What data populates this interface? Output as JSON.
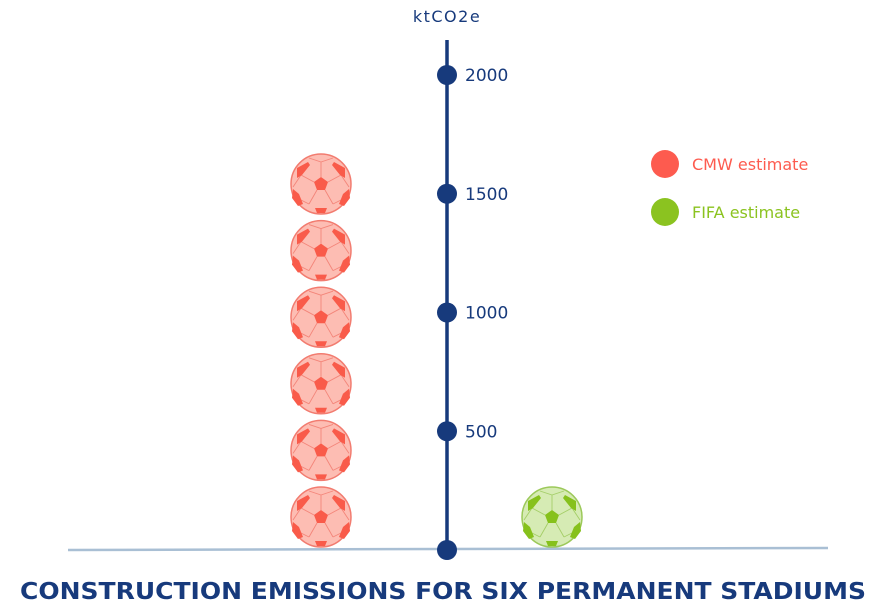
{
  "chart_data": {
    "type": "pictogram",
    "title": "CONSTRUCTION EMISSIONS FOR SIX PERMANENT STADIUMS",
    "ylabel": "ktCO2e",
    "ylim": [
      0,
      2000
    ],
    "yticks": [
      {
        "value": 0,
        "label": ""
      },
      {
        "value": 500,
        "label": "500"
      },
      {
        "value": 1000,
        "label": "1000"
      },
      {
        "value": 1500,
        "label": "1500"
      },
      {
        "value": 2000,
        "label": "2000"
      }
    ],
    "legend_position": "top-right",
    "series": [
      {
        "name": "CMW estimate",
        "color": "#fd5b4f",
        "icon": "soccer-ball-icon",
        "icon_count": 6,
        "value": 1600
      },
      {
        "name": "FIFA estimate",
        "color": "#8bc320",
        "icon": "soccer-ball-icon",
        "icon_count": 1,
        "value": 125
      }
    ]
  }
}
